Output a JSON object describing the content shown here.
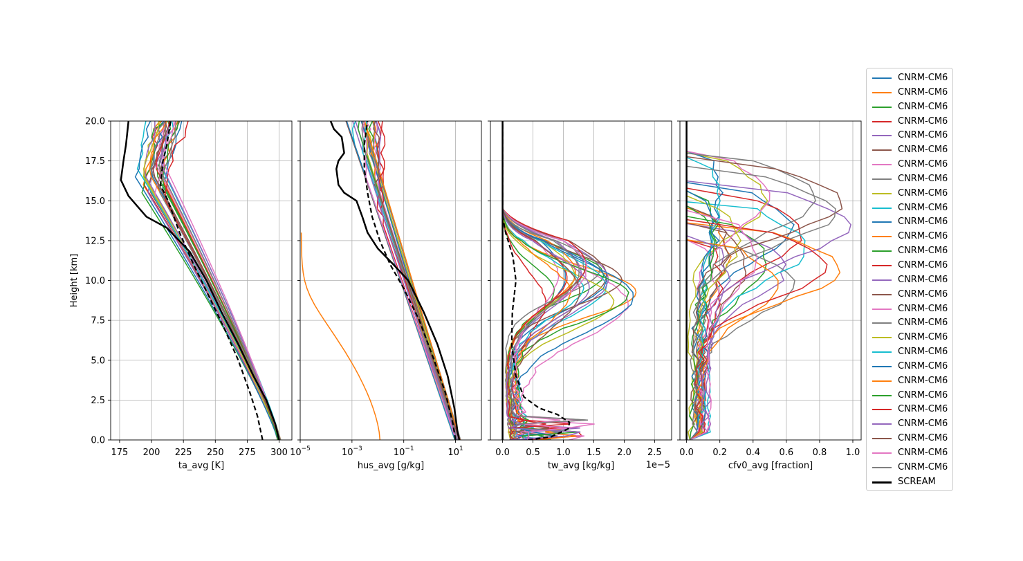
{
  "chart_data": [
    {
      "type": "line",
      "panel": "ta",
      "xlabel": "ta_avg [K]",
      "ylabel": "Height [km]",
      "xlim": [
        168,
        310
      ],
      "ylim": [
        0,
        20
      ],
      "xscale": "linear",
      "xticks": [
        175,
        200,
        225,
        250,
        275,
        300
      ],
      "xticklabels": [
        "175",
        "200",
        "225",
        "250",
        "275",
        "300"
      ],
      "yticks": [
        0,
        2.5,
        5,
        7.5,
        10,
        12.5,
        15,
        17.5,
        20
      ],
      "yticklabels": [
        "0.0",
        "2.5",
        "5.0",
        "7.5",
        "10.0",
        "12.5",
        "15.0",
        "17.5",
        "20.0"
      ],
      "grid": true,
      "scream": [
        [
          300,
          0
        ],
        [
          297,
          1
        ],
        [
          290,
          2.5
        ],
        [
          280,
          4
        ],
        [
          268,
          6
        ],
        [
          255,
          8
        ],
        [
          243,
          10
        ],
        [
          230,
          11.8
        ],
        [
          212,
          13.3
        ],
        [
          196,
          14
        ],
        [
          182,
          15.3
        ],
        [
          176,
          16.3
        ],
        [
          178,
          17.5
        ],
        [
          180,
          18.5
        ],
        [
          182,
          20
        ]
      ],
      "obs_dashed": [
        [
          287,
          0
        ],
        [
          283,
          1.5
        ],
        [
          277,
          3
        ],
        [
          268,
          5
        ],
        [
          257,
          7
        ],
        [
          245,
          9
        ],
        [
          233,
          11
        ],
        [
          222,
          13
        ],
        [
          213,
          15
        ],
        [
          207,
          16
        ],
        [
          209,
          17.5
        ],
        [
          212,
          18.5
        ],
        [
          215,
          20
        ]
      ]
    },
    {
      "type": "line",
      "panel": "hus",
      "xlabel": "hus_avg [g/kg]",
      "xlim": [
        1e-05,
        100
      ],
      "ylim": [
        0,
        20
      ],
      "xscale": "log",
      "xticks": [
        1e-05,
        0.001,
        0.1,
        10
      ],
      "xticklabels": [
        "10−5",
        "10−3",
        "10−1",
        "101"
      ],
      "yticks": [
        0,
        2.5,
        5,
        7.5,
        10,
        12.5,
        15,
        17.5,
        20
      ],
      "grid": true,
      "scream": [
        [
          14,
          0
        ],
        [
          12,
          0.5
        ],
        [
          9,
          2
        ],
        [
          5,
          4
        ],
        [
          2,
          6
        ],
        [
          0.6,
          8
        ],
        [
          0.15,
          10
        ],
        [
          0.04,
          11
        ],
        [
          0.01,
          12
        ],
        [
          0.004,
          13
        ],
        [
          0.0025,
          14
        ],
        [
          0.0015,
          15
        ],
        [
          0.0005,
          15.5
        ],
        [
          0.0003,
          16
        ],
        [
          0.00025,
          17
        ],
        [
          0.0003,
          17.5
        ],
        [
          0.0005,
          18
        ],
        [
          0.0004,
          19
        ],
        [
          0.0002,
          19.5
        ],
        [
          0.00015,
          20
        ]
      ],
      "obs_dashed": [
        [
          10,
          0
        ],
        [
          8,
          1
        ],
        [
          4,
          3
        ],
        [
          1.5,
          5
        ],
        [
          0.4,
          7.5
        ],
        [
          0.1,
          9.5
        ],
        [
          0.03,
          11
        ],
        [
          0.012,
          12.5
        ],
        [
          0.006,
          14
        ],
        [
          0.004,
          15.5
        ],
        [
          0.003,
          17
        ],
        [
          0.003,
          18.5
        ],
        [
          0.004,
          20
        ]
      ]
    },
    {
      "type": "line",
      "panel": "tw",
      "xlabel": "tw_avg [kg/kg]",
      "xlim": [
        -2e-06,
        2.78e-05
      ],
      "ylim": [
        0,
        20
      ],
      "xscale": "linear",
      "offset_text": "1e−5",
      "xticks": [
        0,
        5e-06,
        1e-05,
        1.5e-05,
        2e-05,
        2.5e-05
      ],
      "xticklabels": [
        "0.0",
        "0.5",
        "1.0",
        "1.5",
        "2.0",
        "2.5"
      ],
      "yticks": [
        0,
        2.5,
        5,
        7.5,
        10,
        12.5,
        15,
        17.5,
        20
      ],
      "grid": true,
      "scream": [
        [
          0,
          0
        ],
        [
          0,
          20
        ]
      ],
      "obs_dashed": [
        [
          4.2e-06,
          0
        ],
        [
          8e-06,
          0.2
        ],
        [
          1.08e-05,
          0.7
        ],
        [
          1.1e-05,
          1.1
        ],
        [
          9e-06,
          1.6
        ],
        [
          6e-06,
          2
        ],
        [
          3.5e-06,
          2.7
        ],
        [
          2.2e-06,
          4
        ],
        [
          1.5e-06,
          6
        ],
        [
          1.6e-06,
          8
        ],
        [
          2.2e-06,
          10
        ],
        [
          1.7e-06,
          11.5
        ],
        [
          5e-07,
          13
        ],
        [
          0,
          14
        ],
        [
          0,
          20
        ]
      ]
    },
    {
      "type": "line",
      "panel": "cfv0",
      "xlabel": "cfv0_avg [fraction]",
      "xlim": [
        -0.04,
        1.05
      ],
      "ylim": [
        0,
        20
      ],
      "xscale": "linear",
      "xticks": [
        0,
        0.2,
        0.4,
        0.6,
        0.8,
        1.0
      ],
      "xticklabels": [
        "0.0",
        "0.2",
        "0.4",
        "0.6",
        "0.8",
        "1.0"
      ],
      "yticks": [
        0,
        2.5,
        5,
        7.5,
        10,
        12.5,
        15,
        17.5,
        20
      ],
      "grid": true,
      "scream": [
        [
          0,
          0
        ],
        [
          0,
          20
        ]
      ]
    }
  ],
  "legend": {
    "entries": [
      {
        "label": "CNRM-CM6",
        "color": "#1f77b4"
      },
      {
        "label": "CNRM-CM6",
        "color": "#ff7f0e"
      },
      {
        "label": "CNRM-CM6",
        "color": "#2ca02c"
      },
      {
        "label": "CNRM-CM6",
        "color": "#d62728"
      },
      {
        "label": "CNRM-CM6",
        "color": "#9467bd"
      },
      {
        "label": "CNRM-CM6",
        "color": "#8c564b"
      },
      {
        "label": "CNRM-CM6",
        "color": "#e377c2"
      },
      {
        "label": "CNRM-CM6",
        "color": "#7f7f7f"
      },
      {
        "label": "CNRM-CM6",
        "color": "#bcbd22"
      },
      {
        "label": "CNRM-CM6",
        "color": "#17becf"
      },
      {
        "label": "CNRM-CM6",
        "color": "#1f77b4"
      },
      {
        "label": "CNRM-CM6",
        "color": "#ff7f0e"
      },
      {
        "label": "CNRM-CM6",
        "color": "#2ca02c"
      },
      {
        "label": "CNRM-CM6",
        "color": "#d62728"
      },
      {
        "label": "CNRM-CM6",
        "color": "#9467bd"
      },
      {
        "label": "CNRM-CM6",
        "color": "#8c564b"
      },
      {
        "label": "CNRM-CM6",
        "color": "#e377c2"
      },
      {
        "label": "CNRM-CM6",
        "color": "#7f7f7f"
      },
      {
        "label": "CNRM-CM6",
        "color": "#bcbd22"
      },
      {
        "label": "CNRM-CM6",
        "color": "#17becf"
      },
      {
        "label": "CNRM-CM6",
        "color": "#1f77b4"
      },
      {
        "label": "CNRM-CM6",
        "color": "#ff7f0e"
      },
      {
        "label": "CNRM-CM6",
        "color": "#2ca02c"
      },
      {
        "label": "CNRM-CM6",
        "color": "#d62728"
      },
      {
        "label": "CNRM-CM6",
        "color": "#9467bd"
      },
      {
        "label": "CNRM-CM6",
        "color": "#8c564b"
      },
      {
        "label": "CNRM-CM6",
        "color": "#e377c2"
      },
      {
        "label": "CNRM-CM6",
        "color": "#7f7f7f"
      },
      {
        "label": "SCREAM",
        "color": "#000000"
      }
    ]
  }
}
